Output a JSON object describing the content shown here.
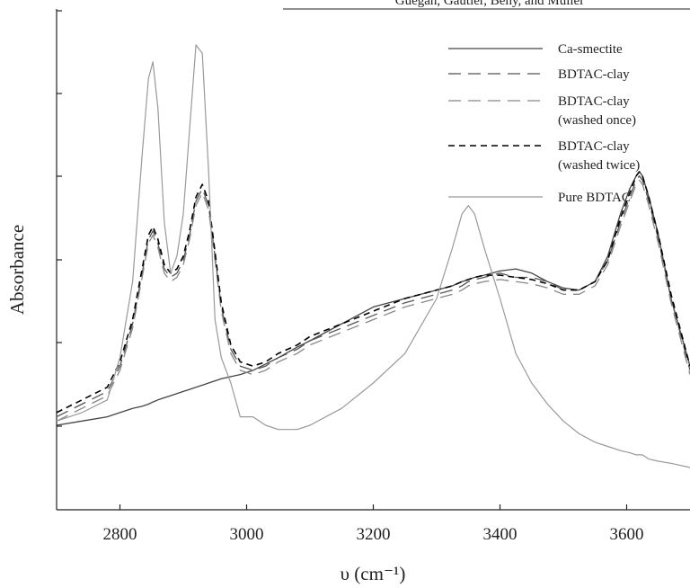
{
  "page_header": "Guégan, Gautier, Beny, and Muller",
  "chart_data": {
    "type": "line",
    "xlabel": "υ (cm⁻¹)",
    "ylabel": "Absorbance",
    "xlim": [
      2700,
      3700
    ],
    "xticks": [
      2800,
      3000,
      3200,
      3400,
      3600
    ],
    "ylim": [
      0,
      1
    ],
    "grid": false,
    "legend_position": "top-right",
    "legend": [
      {
        "label": "Ca-smectite",
        "style": "solid",
        "color": "#444444"
      },
      {
        "label": "BDTAC-clay",
        "style": "long-dash",
        "color": "#555555"
      },
      {
        "label": "BDTAC-clay",
        "sublabel": "(washed once)",
        "style": "long-dash-gray",
        "color": "#888888"
      },
      {
        "label": "BDTAC-clay",
        "sublabel": "(washed twice)",
        "style": "short-dash",
        "color": "#000000"
      },
      {
        "label": "Pure BDTAC",
        "style": "solid-gray",
        "color": "#999999"
      }
    ],
    "x": [
      2700,
      2740,
      2780,
      2800,
      2820,
      2835,
      2845,
      2852,
      2860,
      2870,
      2880,
      2890,
      2900,
      2910,
      2920,
      2930,
      2940,
      2950,
      2960,
      2975,
      2990,
      3010,
      3030,
      3050,
      3080,
      3100,
      3150,
      3200,
      3250,
      3300,
      3325,
      3340,
      3350,
      3360,
      3375,
      3400,
      3425,
      3450,
      3475,
      3500,
      3525,
      3550,
      3570,
      3590,
      3605,
      3615,
      3620,
      3625,
      3635,
      3650,
      3670,
      3700
    ],
    "series": [
      {
        "name": "Ca-smectite",
        "values": [
          0.1,
          0.11,
          0.12,
          0.13,
          0.14,
          0.145,
          0.15,
          0.155,
          0.16,
          0.165,
          0.17,
          0.175,
          0.18,
          0.185,
          0.19,
          0.195,
          0.2,
          0.205,
          0.21,
          0.215,
          0.22,
          0.23,
          0.245,
          0.26,
          0.285,
          0.3,
          0.34,
          0.38,
          0.4,
          0.42,
          0.43,
          0.44,
          0.445,
          0.45,
          0.455,
          0.465,
          0.47,
          0.46,
          0.44,
          0.425,
          0.42,
          0.44,
          0.5,
          0.6,
          0.66,
          0.69,
          0.7,
          0.69,
          0.64,
          0.55,
          0.4,
          0.24
        ]
      },
      {
        "name": "BDTAC-clay",
        "values": [
          0.12,
          0.15,
          0.18,
          0.24,
          0.34,
          0.46,
          0.54,
          0.56,
          0.53,
          0.47,
          0.45,
          0.46,
          0.49,
          0.55,
          0.63,
          0.66,
          0.62,
          0.5,
          0.38,
          0.28,
          0.24,
          0.23,
          0.24,
          0.26,
          0.28,
          0.3,
          0.33,
          0.36,
          0.39,
          0.41,
          0.42,
          0.43,
          0.44,
          0.445,
          0.45,
          0.46,
          0.45,
          0.45,
          0.44,
          0.42,
          0.42,
          0.44,
          0.49,
          0.58,
          0.64,
          0.68,
          0.69,
          0.68,
          0.63,
          0.54,
          0.4,
          0.23
        ]
      },
      {
        "name": "BDTAC-clay (washed once)",
        "values": [
          0.11,
          0.14,
          0.17,
          0.23,
          0.33,
          0.45,
          0.53,
          0.55,
          0.52,
          0.46,
          0.44,
          0.45,
          0.48,
          0.54,
          0.62,
          0.65,
          0.61,
          0.49,
          0.37,
          0.27,
          0.23,
          0.22,
          0.23,
          0.25,
          0.27,
          0.29,
          0.32,
          0.35,
          0.38,
          0.4,
          0.41,
          0.42,
          0.43,
          0.435,
          0.44,
          0.445,
          0.44,
          0.435,
          0.425,
          0.41,
          0.41,
          0.43,
          0.48,
          0.57,
          0.63,
          0.67,
          0.68,
          0.67,
          0.62,
          0.53,
          0.39,
          0.22
        ]
      },
      {
        "name": "BDTAC-clay (washed twice)",
        "values": [
          0.13,
          0.16,
          0.19,
          0.25,
          0.35,
          0.47,
          0.55,
          0.57,
          0.54,
          0.48,
          0.46,
          0.47,
          0.5,
          0.56,
          0.64,
          0.67,
          0.63,
          0.51,
          0.39,
          0.29,
          0.25,
          0.24,
          0.25,
          0.27,
          0.29,
          0.31,
          0.34,
          0.37,
          0.4,
          0.42,
          0.43,
          0.44,
          0.445,
          0.45,
          0.455,
          0.455,
          0.45,
          0.445,
          0.435,
          0.42,
          0.42,
          0.44,
          0.49,
          0.59,
          0.65,
          0.69,
          0.7,
          0.69,
          0.64,
          0.55,
          0.41,
          0.24
        ]
      },
      {
        "name": "Pure BDTAC",
        "values": [
          0.11,
          0.13,
          0.16,
          0.26,
          0.44,
          0.74,
          0.92,
          0.96,
          0.85,
          0.58,
          0.46,
          0.5,
          0.6,
          0.8,
          1.0,
          0.98,
          0.7,
          0.35,
          0.26,
          0.2,
          0.12,
          0.12,
          0.1,
          0.09,
          0.09,
          0.1,
          0.14,
          0.2,
          0.27,
          0.4,
          0.52,
          0.6,
          0.62,
          0.6,
          0.52,
          0.4,
          0.27,
          0.2,
          0.15,
          0.11,
          0.08,
          0.06,
          0.05,
          0.04,
          0.035,
          0.03,
          0.03,
          0.03,
          0.02,
          0.015,
          0.01,
          0.0
        ]
      }
    ]
  }
}
